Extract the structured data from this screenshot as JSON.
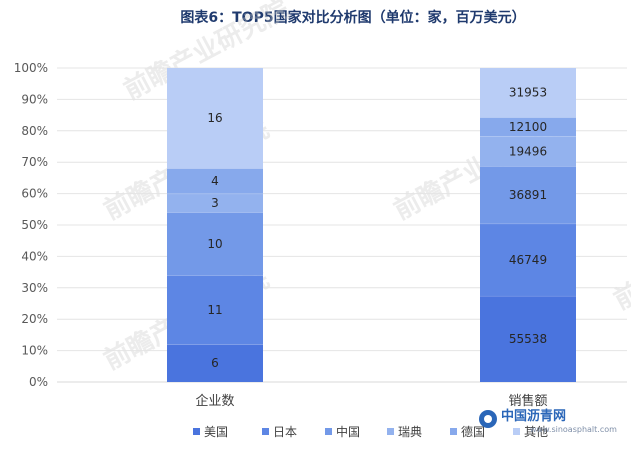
{
  "chart_data": {
    "type": "bar",
    "stacked": "percent",
    "title": "图表6：TOP5国家对比分析图（单位：家，百万美元）",
    "categories": [
      "企业数",
      "销售额"
    ],
    "y_ticks": [
      "0%",
      "10%",
      "20%",
      "30%",
      "40%",
      "50%",
      "60%",
      "70%",
      "80%",
      "90%",
      "100%"
    ],
    "ylim": [
      0,
      100
    ],
    "grid": true,
    "legend": "bottom",
    "series": [
      {
        "name": "美国",
        "color": "#4a74de",
        "values": [
          6,
          55538
        ]
      },
      {
        "name": "日本",
        "color": "#5d86e4",
        "values": [
          11,
          46749
        ]
      },
      {
        "name": "中国",
        "color": "#7399e8",
        "values": [
          10,
          36891
        ]
      },
      {
        "name": "瑞典",
        "color": "#93b2ee",
        "values": [
          3,
          19496
        ]
      },
      {
        "name": "德国",
        "color": "#87a9ec",
        "values": [
          4,
          12100
        ]
      },
      {
        "name": "其他",
        "color": "#b9cdf6",
        "values": [
          16,
          31953
        ]
      }
    ]
  },
  "watermark": {
    "text": "前瞻产业研究院"
  },
  "site_logo": {
    "name": "中国沥青网",
    "url": "www.sinoasphalt.com"
  }
}
